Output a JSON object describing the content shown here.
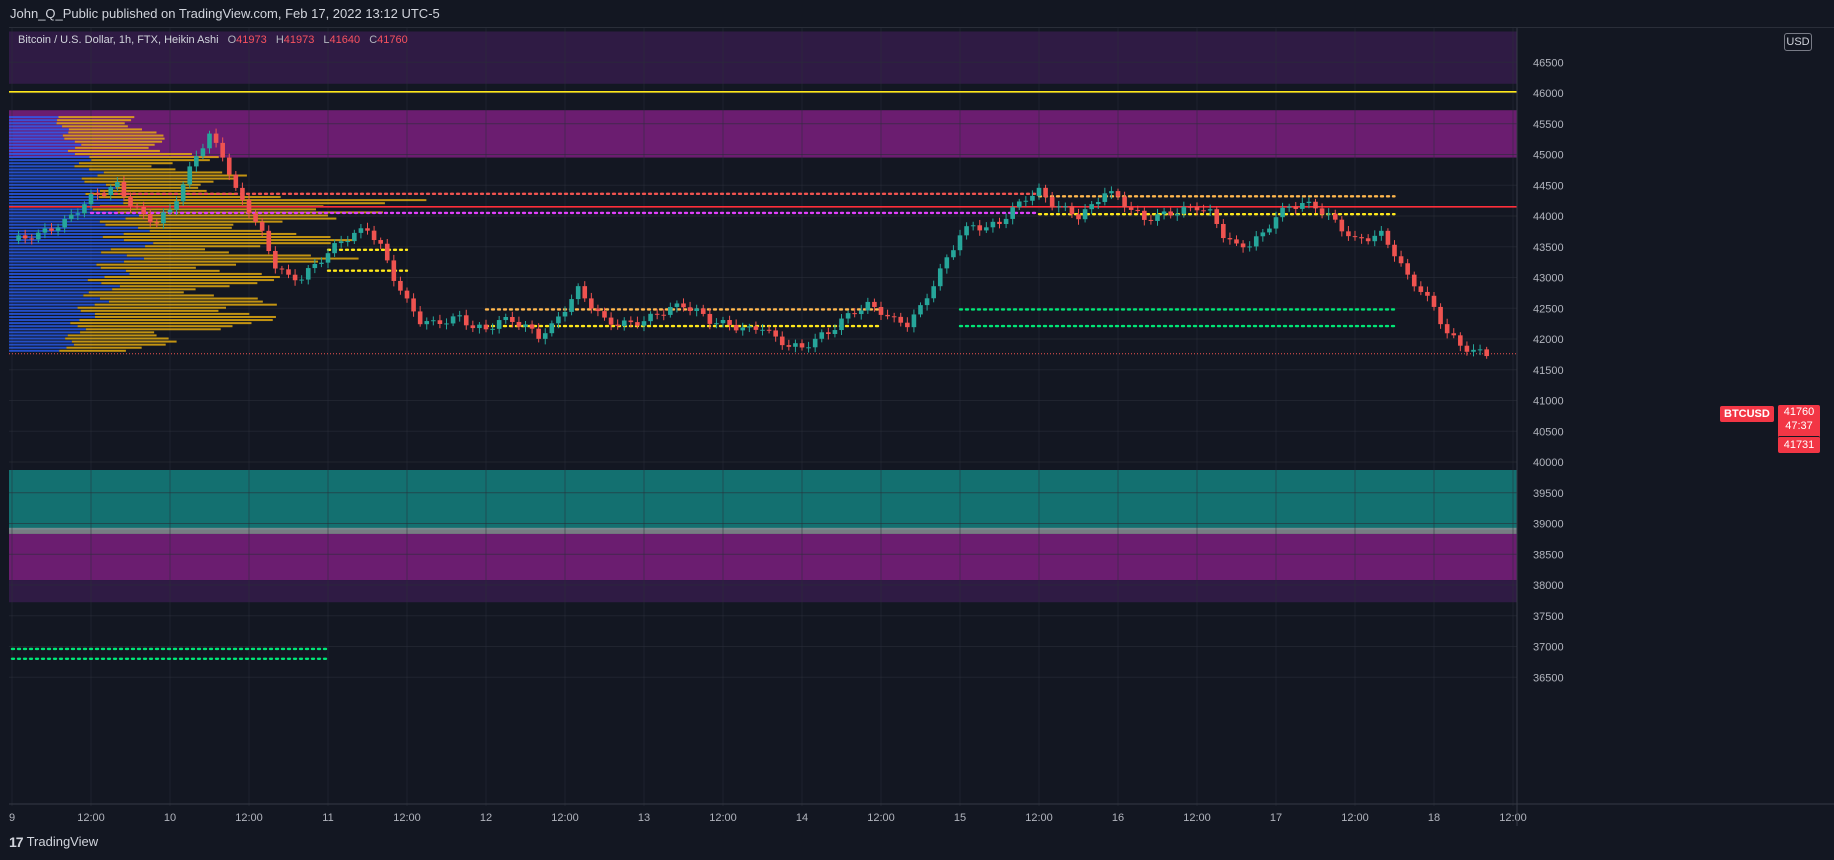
{
  "header": {
    "publish_text": "John_Q_Public published on TradingView.com, Feb 17, 2022 13:12 UTC-5"
  },
  "legend": {
    "symbol": "Bitcoin / U.S. Dollar, 1h, FTX, Heikin Ashi",
    "o_label": "O",
    "o_value": "41973",
    "h_label": "H",
    "h_value": "41973",
    "l_label": "L",
    "l_value": "41640",
    "c_label": "C",
    "c_value": "41760"
  },
  "currency_badge": "USD",
  "last_price": {
    "symbol": "BTCUSD",
    "price": "41760",
    "countdown": "47:37",
    "low": "41731"
  },
  "footer": {
    "brand": "TradingView",
    "logo_glyph": "17"
  },
  "colors": {
    "background": "#131722",
    "up": "#26a69a",
    "down": "#ef5350",
    "zone_teal": "#14807e",
    "zone_magenta": "#7b1e7e",
    "zone_purple": "#3a1f4e",
    "volume_profile_blue": "#2962ff",
    "volume_profile_gold": "#f0b40f",
    "line_red": "#ff2e3a",
    "line_yellow": "#ffe81a"
  },
  "chart_data": {
    "type": "candlestick",
    "title": "Bitcoin / U.S. Dollar, 1h, FTX, Heikin Ashi",
    "x_tick_labels": [
      "9",
      "12:00",
      "10",
      "12:00",
      "11",
      "12:00",
      "12",
      "12:00",
      "13",
      "12:00",
      "14",
      "12:00",
      "15",
      "12:00",
      "16",
      "12:00",
      "17",
      "12:00",
      "18",
      "12:00"
    ],
    "y_tick_labels": [
      "36500",
      "37000",
      "37500",
      "38000",
      "38500",
      "39000",
      "39500",
      "40000",
      "40500",
      "41000",
      "41500",
      "42000",
      "42500",
      "43000",
      "43500",
      "44000",
      "44500",
      "45000",
      "45500",
      "46000",
      "46500"
    ],
    "ylim": [
      36450,
      47000
    ],
    "zones": [
      {
        "name": "upper-purple",
        "from": 46150,
        "to": 47000,
        "color": "#351c4a"
      },
      {
        "name": "upper-magenta",
        "from": 44950,
        "to": 45720,
        "color": "#7b1e7e"
      },
      {
        "name": "lower-teal",
        "from": 38900,
        "to": 39870,
        "color": "#14807e"
      },
      {
        "name": "lower-gray",
        "from": 38830,
        "to": 38930,
        "color": "#8a8f94"
      },
      {
        "name": "lower-magenta",
        "from": 38080,
        "to": 38830,
        "color": "#7b1e7e"
      },
      {
        "name": "lower-purple",
        "from": 37720,
        "to": 38080,
        "color": "#351c4a"
      }
    ],
    "horizontal_lines": [
      {
        "price": 46020,
        "color": "#ffe81a",
        "style": "solid"
      },
      {
        "price": 44150,
        "color": "#ff2e3a",
        "style": "solid"
      },
      {
        "price": 41760,
        "color": "#ef5350",
        "style": "dotted-thin"
      }
    ],
    "dotted_levels": [
      {
        "price": 44360,
        "x_from": "9 12:00",
        "x_to": "15 12:00",
        "color": "#ef5350"
      },
      {
        "price": 44050,
        "x_from": "9 12:00",
        "x_to": "15 12:00",
        "color": "#e040fb"
      },
      {
        "price": 44320,
        "x_from": "15 12:00",
        "x_to": "17 18:00",
        "color": "#ffb74d"
      },
      {
        "price": 44030,
        "x_from": "15 12:00",
        "x_to": "17 18:00",
        "color": "#ffe81a"
      },
      {
        "price": 43450,
        "x_from": "11",
        "x_to": "11 12:00",
        "color": "#ffe81a"
      },
      {
        "price": 43110,
        "x_from": "11",
        "x_to": "11 12:00",
        "color": "#ffe81a"
      },
      {
        "price": 42480,
        "x_from": "12",
        "x_to": "14 12:00",
        "color": "#ffb74d"
      },
      {
        "price": 42210,
        "x_from": "12",
        "x_to": "14 12:00",
        "color": "#ffe81a"
      },
      {
        "price": 42480,
        "x_from": "15",
        "x_to": "17 18:00",
        "color": "#00e676"
      },
      {
        "price": 42210,
        "x_from": "15",
        "x_to": "17 18:00",
        "color": "#00e676"
      },
      {
        "price": 36960,
        "x_from": "9",
        "x_to": "11",
        "color": "#00e676"
      },
      {
        "price": 36800,
        "x_from": "9",
        "x_to": "11",
        "color": "#00e676"
      }
    ],
    "close_path": [
      [
        0,
        43600
      ],
      [
        4,
        43700
      ],
      [
        8,
        43900
      ],
      [
        12,
        44300
      ],
      [
        16,
        44500
      ],
      [
        18,
        44200
      ],
      [
        20,
        44000
      ],
      [
        22,
        43900
      ],
      [
        24,
        44100
      ],
      [
        26,
        44500
      ],
      [
        28,
        45000
      ],
      [
        30,
        45300
      ],
      [
        32,
        45000
      ],
      [
        34,
        44400
      ],
      [
        36,
        44100
      ],
      [
        38,
        43700
      ],
      [
        40,
        43200
      ],
      [
        42,
        43000
      ],
      [
        44,
        43000
      ],
      [
        46,
        43200
      ],
      [
        48,
        43400
      ],
      [
        50,
        43600
      ],
      [
        52,
        43700
      ],
      [
        54,
        43800
      ],
      [
        56,
        43500
      ],
      [
        58,
        43000
      ],
      [
        60,
        42600
      ],
      [
        62,
        42300
      ],
      [
        64,
        42250
      ],
      [
        66,
        42300
      ],
      [
        68,
        42350
      ],
      [
        70,
        42200
      ],
      [
        72,
        42150
      ],
      [
        74,
        42300
      ],
      [
        76,
        42300
      ],
      [
        78,
        42200
      ],
      [
        80,
        42050
      ],
      [
        82,
        42200
      ],
      [
        84,
        42500
      ],
      [
        86,
        42800
      ],
      [
        88,
        42550
      ],
      [
        90,
        42300
      ],
      [
        92,
        42250
      ],
      [
        94,
        42250
      ],
      [
        96,
        42300
      ],
      [
        98,
        42400
      ],
      [
        100,
        42500
      ],
      [
        102,
        42550
      ],
      [
        104,
        42450
      ],
      [
        106,
        42300
      ],
      [
        108,
        42250
      ],
      [
        110,
        42200
      ],
      [
        112,
        42150
      ],
      [
        114,
        42200
      ],
      [
        116,
        42000
      ],
      [
        118,
        41900
      ],
      [
        120,
        41850
      ],
      [
        122,
        42000
      ],
      [
        124,
        42100
      ],
      [
        126,
        42300
      ],
      [
        128,
        42450
      ],
      [
        130,
        42550
      ],
      [
        132,
        42450
      ],
      [
        134,
        42300
      ],
      [
        136,
        42250
      ],
      [
        138,
        42500
      ],
      [
        140,
        42900
      ],
      [
        142,
        43300
      ],
      [
        144,
        43700
      ],
      [
        146,
        43850
      ],
      [
        148,
        43800
      ],
      [
        150,
        43900
      ],
      [
        152,
        44100
      ],
      [
        154,
        44300
      ],
      [
        156,
        44400
      ],
      [
        158,
        44200
      ],
      [
        160,
        44100
      ],
      [
        162,
        44000
      ],
      [
        164,
        44150
      ],
      [
        166,
        44400
      ],
      [
        168,
        44300
      ],
      [
        170,
        44100
      ],
      [
        172,
        43950
      ],
      [
        174,
        44000
      ],
      [
        176,
        44050
      ],
      [
        178,
        44100
      ],
      [
        180,
        44150
      ],
      [
        182,
        44050
      ],
      [
        184,
        43700
      ],
      [
        186,
        43500
      ],
      [
        188,
        43550
      ],
      [
        190,
        43700
      ],
      [
        192,
        44000
      ],
      [
        194,
        44150
      ],
      [
        196,
        44200
      ],
      [
        198,
        44150
      ],
      [
        200,
        44000
      ],
      [
        202,
        43800
      ],
      [
        204,
        43600
      ],
      [
        206,
        43650
      ],
      [
        208,
        43700
      ],
      [
        210,
        43400
      ],
      [
        212,
        43000
      ],
      [
        214,
        42800
      ],
      [
        216,
        42500
      ],
      [
        218,
        42100
      ],
      [
        220,
        41900
      ],
      [
        222,
        41800
      ],
      [
        224,
        41760
      ]
    ],
    "candle_time_origin": "9 00:00",
    "candle_interval": "1h",
    "volume_profile": {
      "levels_from": 41800,
      "levels_to": 45600,
      "poc_price": 44150
    }
  }
}
